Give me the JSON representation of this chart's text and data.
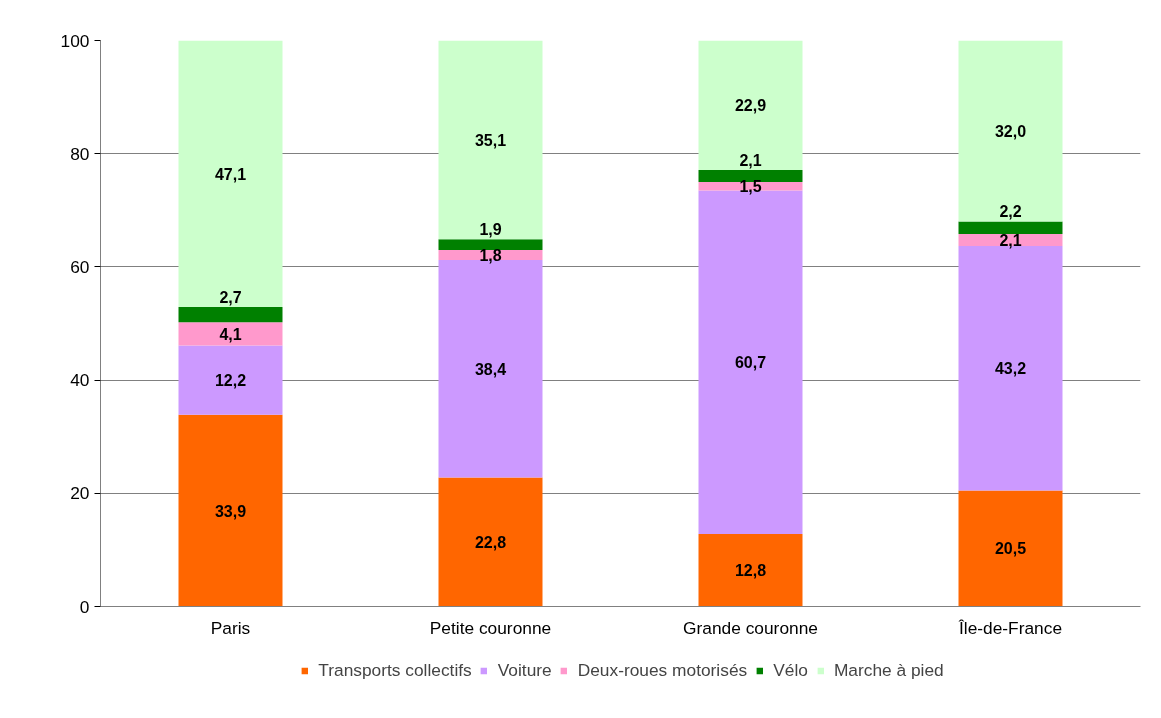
{
  "chart_data": {
    "type": "bar",
    "stacked": true,
    "categories": [
      "Paris",
      "Petite couronne",
      "Grande couronne",
      "Île-de-France"
    ],
    "series": [
      {
        "name": "Transports collectifs",
        "color": "#ff6600",
        "values": [
          33.9,
          22.8,
          12.8,
          20.5
        ],
        "value_labels": [
          "33,9",
          "22,8",
          "12,8",
          "20,5"
        ]
      },
      {
        "name": "Voiture",
        "color": "#cc99ff",
        "values": [
          12.2,
          38.4,
          60.7,
          43.2
        ],
        "value_labels": [
          "12,2",
          "38,4",
          "60,7",
          "43,2"
        ]
      },
      {
        "name": "Deux-roues motorisés",
        "color": "#ff99cc",
        "values": [
          4.1,
          1.8,
          1.5,
          2.1
        ],
        "value_labels": [
          "4,1",
          "1,8",
          "1,5",
          "2,1"
        ]
      },
      {
        "name": "Vélo",
        "color": "#008000",
        "values": [
          2.7,
          1.9,
          2.1,
          2.2
        ],
        "value_labels": [
          "2,7",
          "1,9",
          "2,1",
          "2,2"
        ]
      },
      {
        "name": "Marche à pied",
        "color": "#ccffcc",
        "values": [
          47.1,
          35.1,
          22.9,
          32.0
        ],
        "value_labels": [
          "47,1",
          "35,1",
          "22,9",
          "32,0"
        ]
      }
    ],
    "ylim": [
      0,
      100
    ],
    "yticks": [
      0,
      20,
      40,
      60,
      80,
      100
    ],
    "grid": "y",
    "legend": "bottom"
  }
}
